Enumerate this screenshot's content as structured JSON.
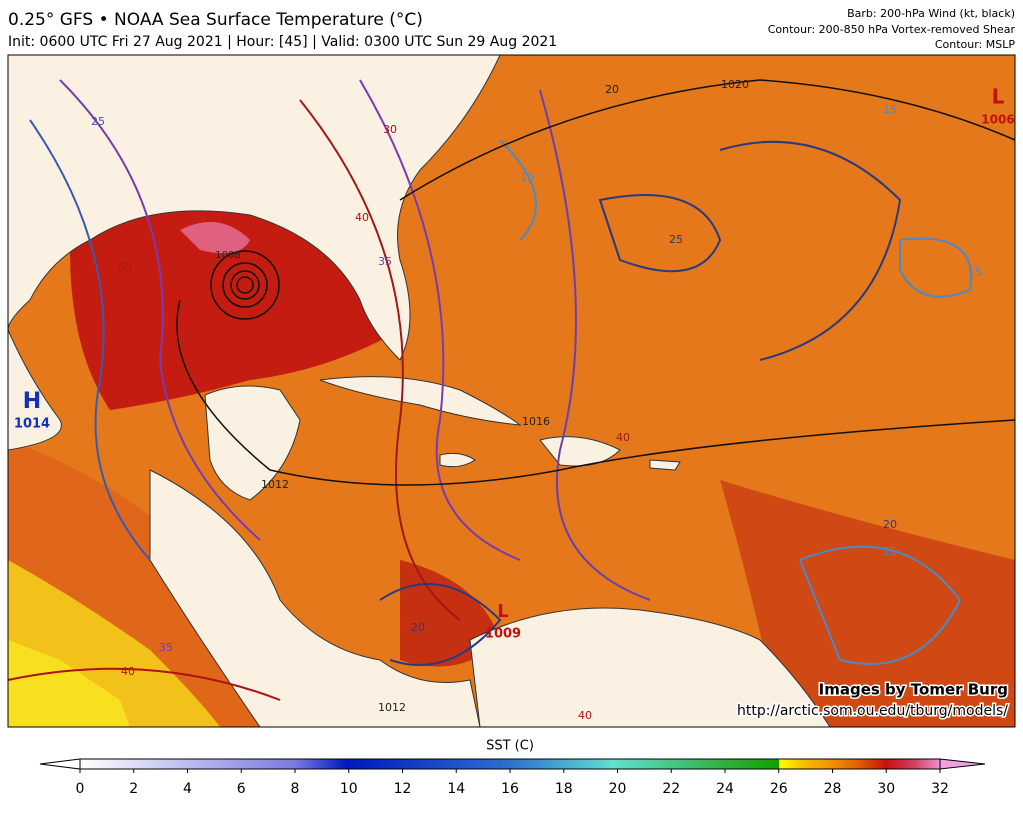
{
  "header": {
    "title": "0.25° GFS • NOAA Sea Surface Temperature (°C)",
    "subtitle": "Init: 0600 UTC Fri 27 Aug 2021 | Hour: [45] | Valid: 0300 UTC Sun 29 Aug 2021",
    "legend_notes": [
      "Barb: 200-hPa Wind (kt, black)",
      "Contour: 200-850 hPa Vortex-removed Shear",
      "Contour: MSLP"
    ]
  },
  "map": {
    "labels": [
      "H",
      "1014",
      "L",
      "1009",
      "L",
      "1006",
      "1008",
      "1012",
      "1016",
      "1020",
      "1012",
      "25",
      "30",
      "35",
      "40",
      "40",
      "50",
      "35",
      "40",
      "20",
      "25",
      "15",
      "15",
      "10",
      "20",
      "15",
      "20",
      "40"
    ],
    "credit": "Images by Tomer Burg",
    "url": "http://arctic.som.ou.edu/tburg/models/"
  },
  "colorbar": {
    "label": "SST (C)",
    "range": [
      0,
      32
    ],
    "ticks": [
      0,
      2,
      4,
      6,
      8,
      10,
      12,
      14,
      16,
      18,
      20,
      22,
      24,
      26,
      28,
      30,
      32
    ]
  }
}
